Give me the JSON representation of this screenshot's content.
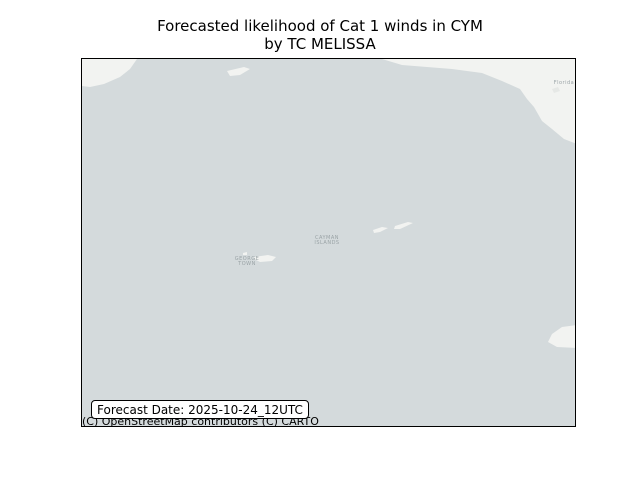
{
  "title": {
    "line1": "Forecasted likelihood of Cat 1 winds in CYM",
    "line2": "by TC MELISSA"
  },
  "map": {
    "ocean_color": "#d4dadc",
    "land_color": "#f2f3f1",
    "place_labels": {
      "george_town_line1": "GEORGE",
      "george_town_line2": "TOWN",
      "cayman_islands_line1": "CAYMAN",
      "cayman_islands_line2": "ISLANDS",
      "florida": "Florida"
    }
  },
  "forecast_date": "Forecast Date: 2025-10-24_12UTC",
  "attribution": "(C) OpenStreetMap contributors (C) CARTO"
}
